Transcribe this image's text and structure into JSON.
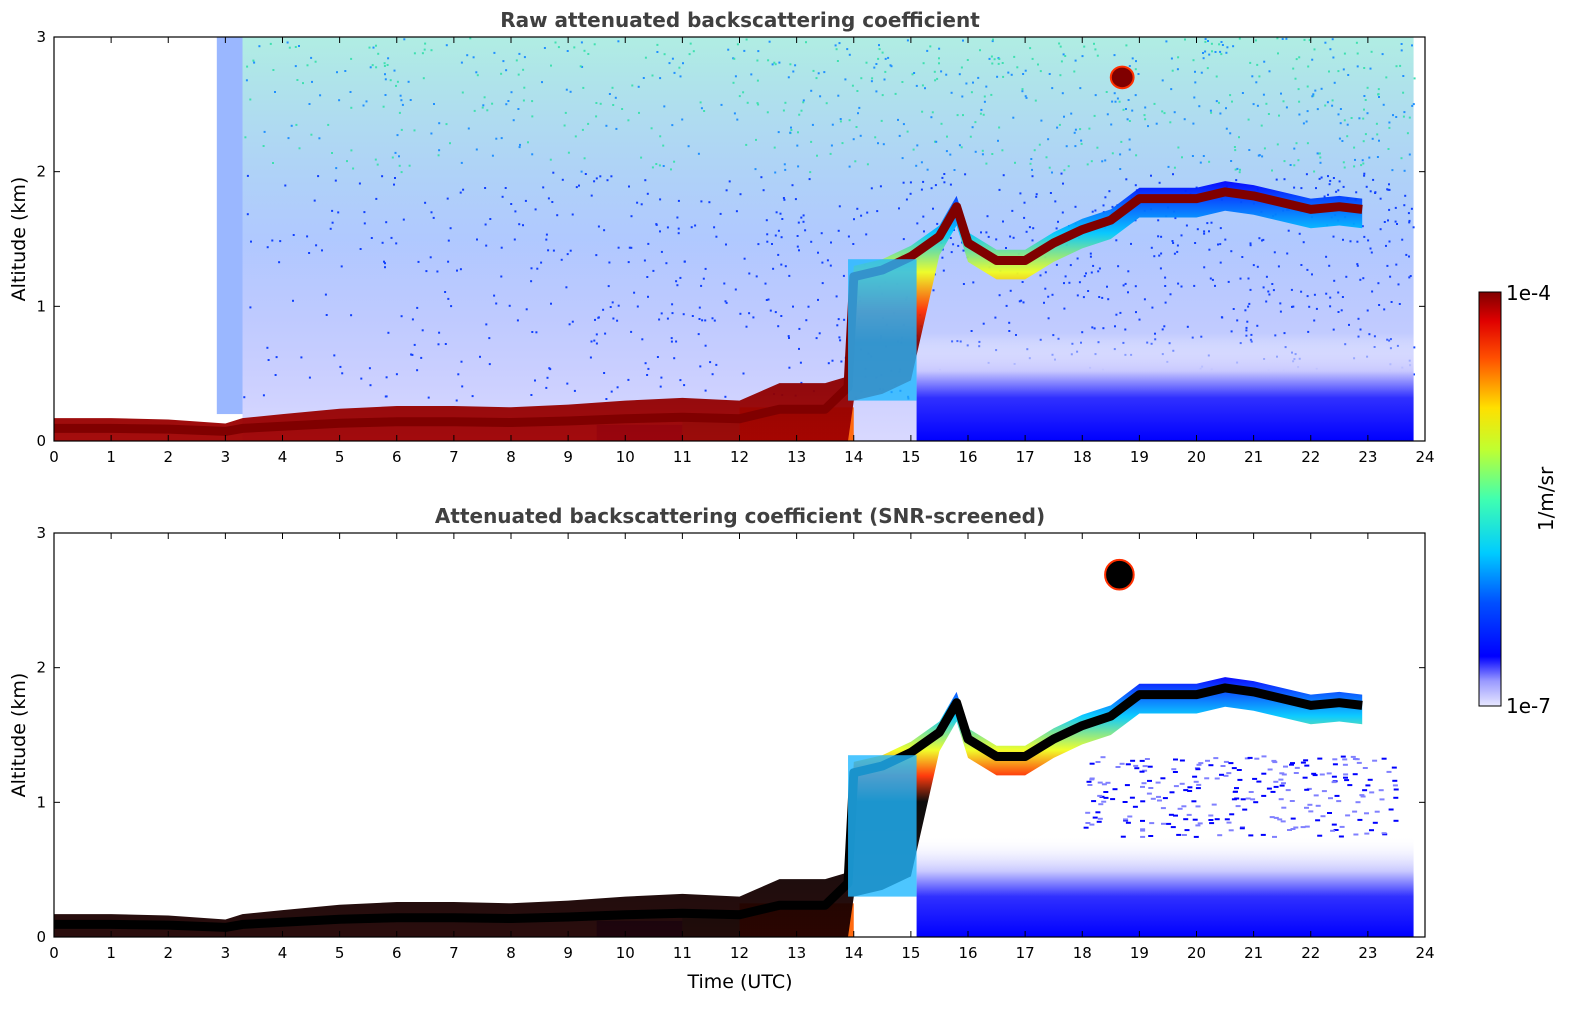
{
  "chart_data": [
    {
      "type": "heatmap",
      "title": "Raw attenuated backscattering coefficient",
      "xlabel": "",
      "ylabel": "Altitude (km)",
      "xlim": [
        0,
        24
      ],
      "ylim": [
        0,
        3
      ],
      "xticks": [
        "0",
        "1",
        "2",
        "3",
        "4",
        "5",
        "6",
        "7",
        "8",
        "9",
        "10",
        "11",
        "12",
        "13",
        "14",
        "15",
        "16",
        "17",
        "18",
        "19",
        "20",
        "21",
        "22",
        "23",
        "24"
      ],
      "yticks": [
        "0",
        "1",
        "2",
        "3"
      ],
      "data_end_hour": 23.8,
      "layer_top_km": {
        "hours": [
          0,
          1,
          2,
          3,
          3.3,
          4,
          5,
          6,
          7,
          8,
          9,
          10,
          11,
          12,
          12.7,
          13.5,
          13.9,
          14,
          14.5,
          15,
          15.5,
          15.8,
          16,
          16.5,
          17,
          17.5,
          18,
          18.5,
          19,
          20,
          20.5,
          21,
          21.5,
          22,
          22.5,
          22.9
        ],
        "values": [
          0.17,
          0.17,
          0.16,
          0.13,
          0.17,
          0.2,
          0.24,
          0.26,
          0.26,
          0.25,
          0.27,
          0.3,
          0.32,
          0.3,
          0.43,
          0.43,
          0.48,
          1.3,
          1.35,
          1.45,
          1.6,
          1.82,
          1.55,
          1.42,
          1.42,
          1.55,
          1.65,
          1.72,
          1.88,
          1.88,
          1.93,
          1.9,
          1.85,
          1.8,
          1.82,
          1.8
        ]
      },
      "isolated_cloud": {
        "hours": [
          18.5,
          18.9
        ],
        "km": [
          2.62,
          2.78
        ]
      },
      "colorbar": {
        "min_label": "1e-7",
        "max_label": "1e-4",
        "label": "1/m/sr",
        "colormap": "jet"
      }
    },
    {
      "type": "heatmap",
      "title": "Attenuated backscattering coefficient (SNR-screened)",
      "xlabel": "Time (UTC)",
      "ylabel": "Altitude (km)",
      "xlim": [
        0,
        24
      ],
      "ylim": [
        0,
        3
      ],
      "xticks": [
        "0",
        "1",
        "2",
        "3",
        "4",
        "5",
        "6",
        "7",
        "8",
        "9",
        "10",
        "11",
        "12",
        "13",
        "14",
        "15",
        "16",
        "17",
        "18",
        "19",
        "20",
        "21",
        "22",
        "23",
        "24"
      ],
      "yticks": [
        "0",
        "1",
        "2",
        "3"
      ],
      "data_end_hour": 23.8,
      "layer_top_km": {
        "hours": [
          0,
          1,
          2,
          3,
          3.3,
          4,
          5,
          6,
          7,
          8,
          9,
          10,
          11,
          12,
          12.7,
          13.5,
          13.9,
          14,
          14.5,
          15,
          15.5,
          15.8,
          16,
          16.5,
          17,
          17.5,
          18,
          18.5,
          19,
          20,
          20.5,
          21,
          21.5,
          22,
          22.5,
          22.9
        ],
        "values": [
          0.17,
          0.17,
          0.16,
          0.13,
          0.17,
          0.2,
          0.24,
          0.26,
          0.26,
          0.25,
          0.27,
          0.3,
          0.32,
          0.3,
          0.43,
          0.43,
          0.48,
          1.3,
          1.35,
          1.45,
          1.6,
          1.82,
          1.55,
          1.42,
          1.42,
          1.55,
          1.65,
          1.72,
          1.88,
          1.88,
          1.93,
          1.9,
          1.85,
          1.8,
          1.82,
          1.8
        ]
      },
      "isolated_cloud": {
        "hours": [
          18.4,
          18.9
        ],
        "km": [
          2.58,
          2.8
        ]
      },
      "colorbar": {
        "min_label": "1e-7",
        "max_label": "1e-4",
        "label": "1/m/sr",
        "colormap": "jet"
      }
    }
  ],
  "colors": {
    "title": "#404040",
    "axis": "#000000",
    "background": "#ffffff",
    "cloud_core": "#800000",
    "screened_core": "#000000",
    "aerosol_low": "#0000ff"
  }
}
